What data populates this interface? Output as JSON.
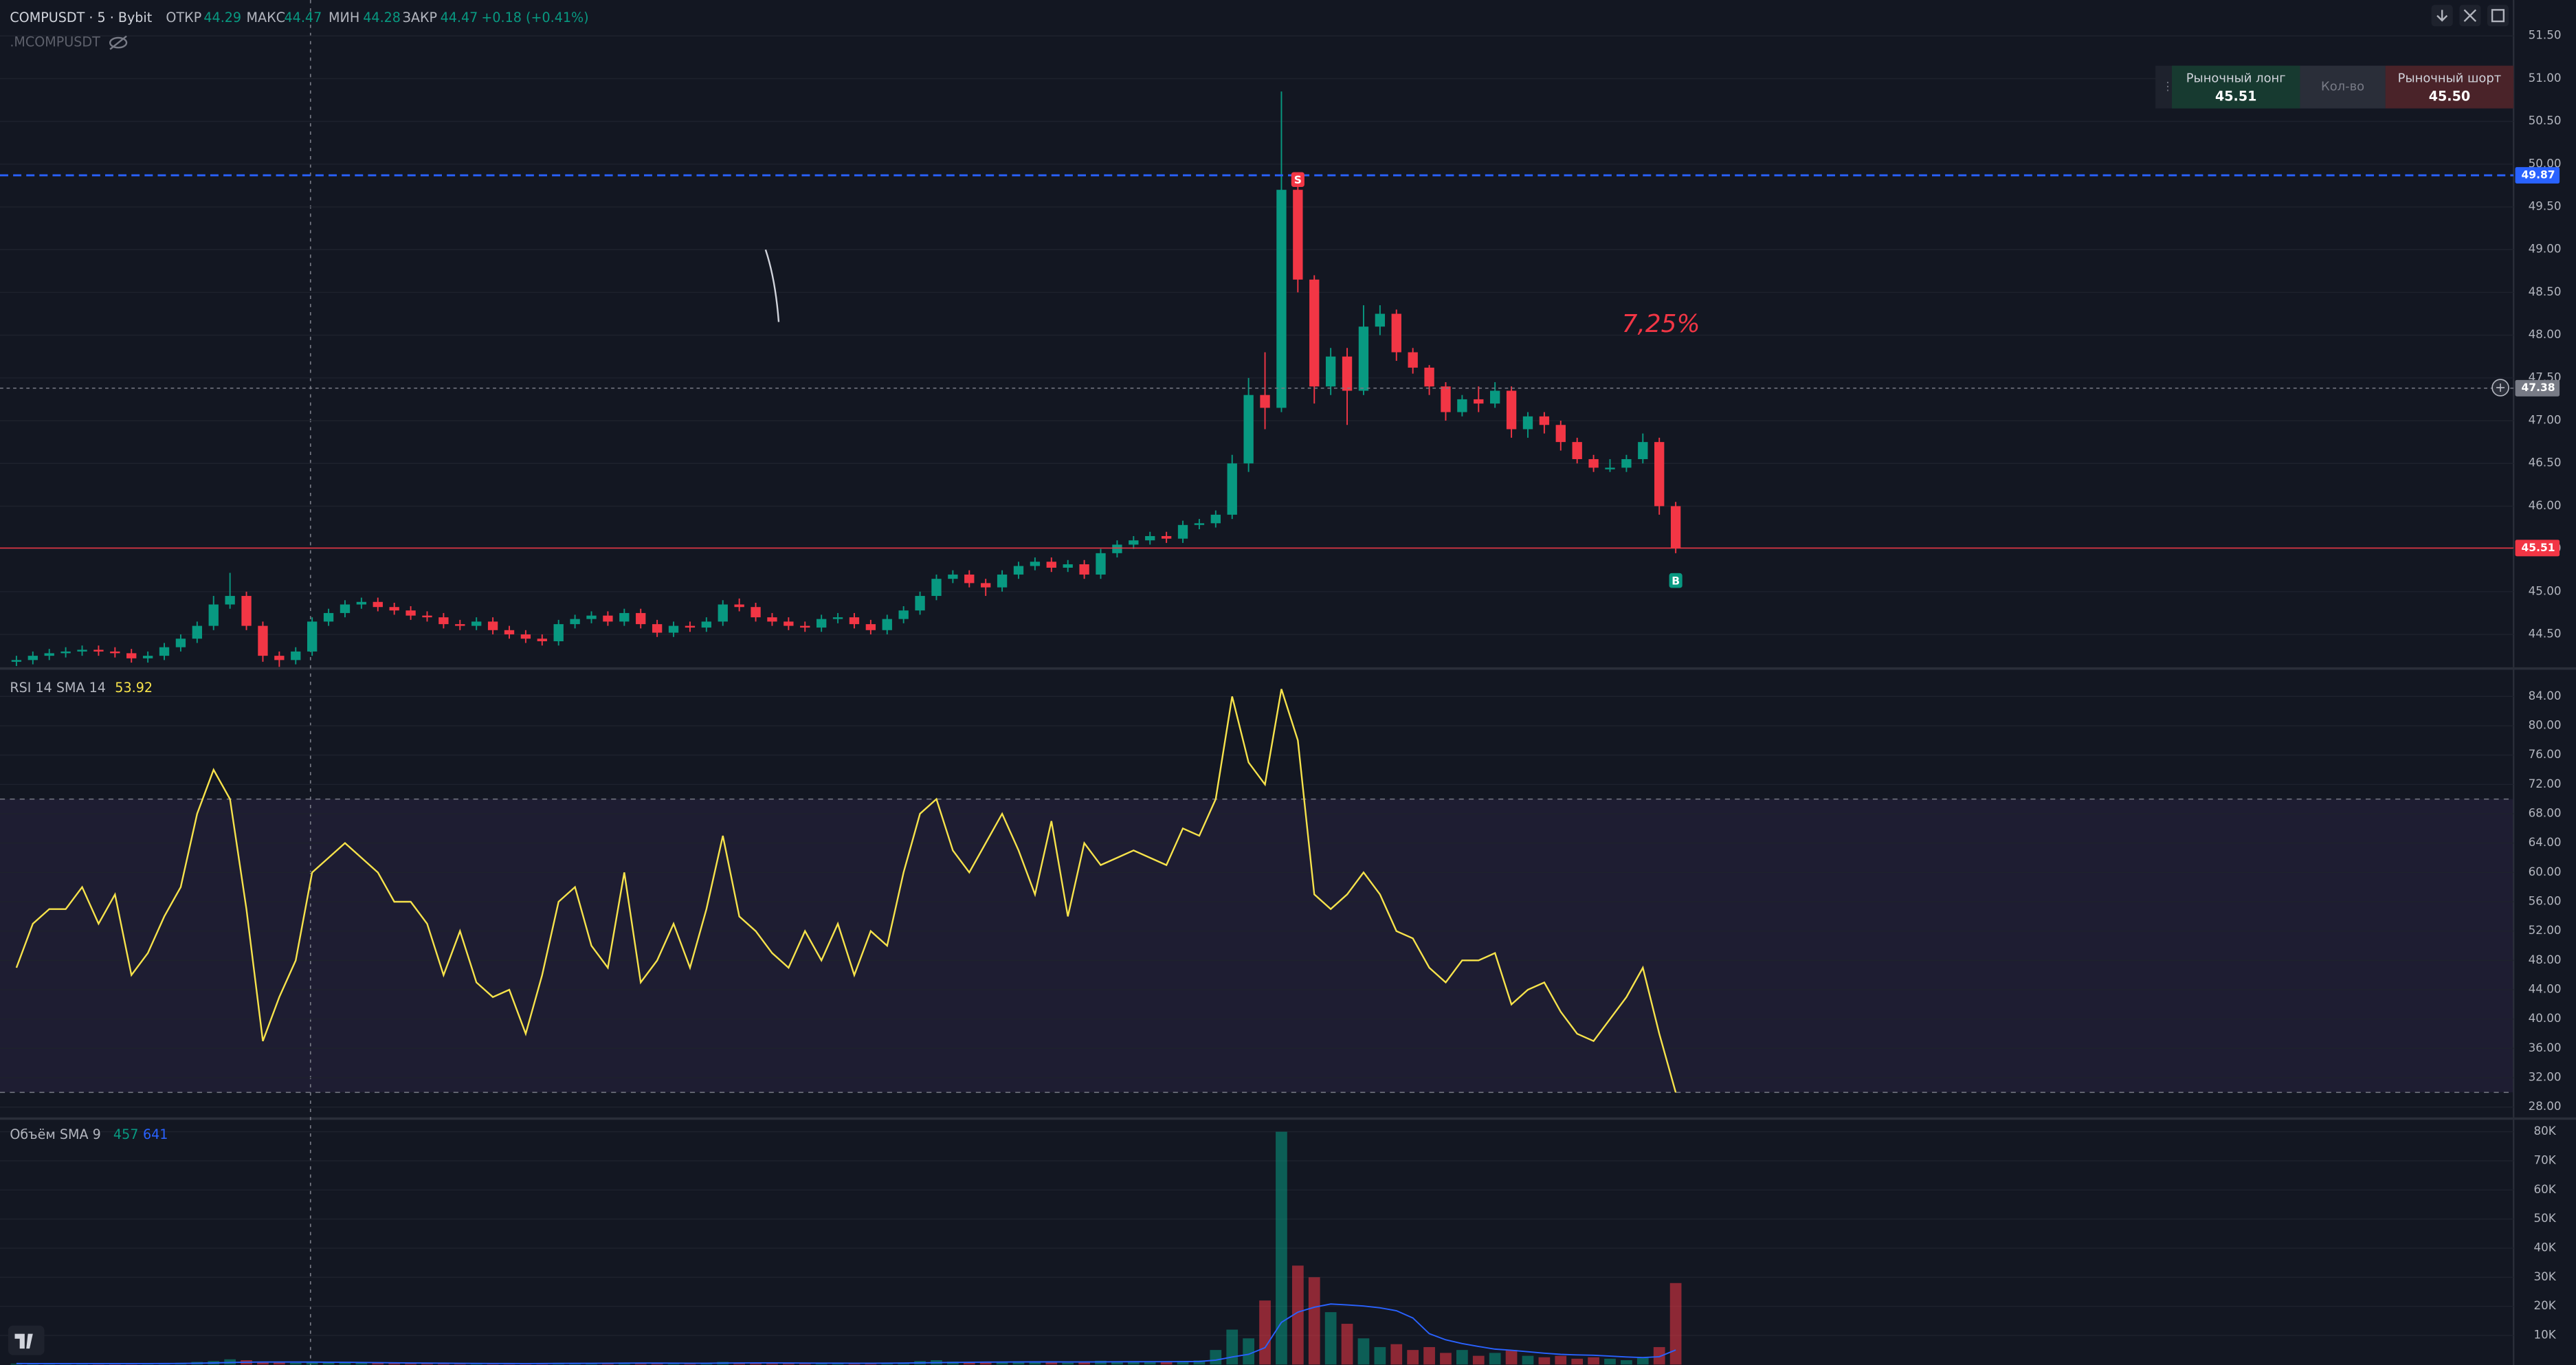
{
  "chart_data": [
    {
      "type": "candlestick",
      "title": "COMPUSDT · 5 · Bybit",
      "subtitle": ".MCOMPUSDT",
      "ohlc_labels": [
        "ОТКР",
        "МАКС",
        "МИН",
        "ЗАКР"
      ],
      "ohlc_values": [
        "44.29",
        "44.47",
        "44.28",
        "44.47"
      ],
      "change": "+0.18 (+0.41%)",
      "up_color": "#089981",
      "down_color": "#f23645",
      "open": [
        44.18,
        44.2,
        44.25,
        44.28,
        44.3,
        44.32,
        44.3,
        44.28,
        44.22,
        44.25,
        44.35,
        44.45,
        44.6,
        44.85,
        44.95,
        44.6,
        44.25,
        44.2,
        44.3,
        44.65,
        44.75,
        44.85,
        44.88,
        44.82,
        44.78,
        44.72,
        44.7,
        44.62,
        44.6,
        44.65,
        44.55,
        44.5,
        44.45,
        44.42,
        44.62,
        44.68,
        44.72,
        44.65,
        44.75,
        44.62,
        44.52,
        44.6,
        44.58,
        44.65,
        44.85,
        44.82,
        44.7,
        44.65,
        44.6,
        44.58,
        44.68,
        44.7,
        44.62,
        44.55,
        44.68,
        44.78,
        44.95,
        45.15,
        45.2,
        45.1,
        45.05,
        45.2,
        45.3,
        45.35,
        45.28,
        45.32,
        45.2,
        45.45,
        45.55,
        45.6,
        45.65,
        45.62,
        45.78,
        45.8,
        45.9,
        46.5,
        47.3,
        47.15,
        49.7,
        48.65,
        47.4,
        47.75,
        47.35,
        48.1,
        48.25,
        47.8,
        47.62,
        47.4,
        47.1,
        47.25,
        47.2,
        47.35,
        46.9,
        47.05,
        46.95,
        46.75,
        46.55,
        46.45,
        46.45,
        46.55,
        46.75,
        46.0
      ],
      "high": [
        44.25,
        44.3,
        44.33,
        44.35,
        44.37,
        44.37,
        44.35,
        44.33,
        44.3,
        44.4,
        44.5,
        44.65,
        44.95,
        45.22,
        45.0,
        44.65,
        44.3,
        44.35,
        44.7,
        44.8,
        44.9,
        44.93,
        44.93,
        44.87,
        44.83,
        44.77,
        44.75,
        44.67,
        44.7,
        44.7,
        44.6,
        44.55,
        44.5,
        44.67,
        44.73,
        44.77,
        44.77,
        44.8,
        44.8,
        44.67,
        44.65,
        44.65,
        44.7,
        44.9,
        44.92,
        44.87,
        44.75,
        44.7,
        44.65,
        44.73,
        44.75,
        44.75,
        44.67,
        44.73,
        44.83,
        45.0,
        45.2,
        45.25,
        45.25,
        45.15,
        45.25,
        45.35,
        45.4,
        45.4,
        45.37,
        45.37,
        45.5,
        45.6,
        45.65,
        45.7,
        45.7,
        45.83,
        45.85,
        45.95,
        46.6,
        47.5,
        47.8,
        50.85,
        49.9,
        48.7,
        47.85,
        47.85,
        48.35,
        48.35,
        48.3,
        47.85,
        47.65,
        47.45,
        47.3,
        47.4,
        47.45,
        47.4,
        47.1,
        47.1,
        47.0,
        46.8,
        46.6,
        46.55,
        46.6,
        46.85,
        46.8,
        46.05
      ],
      "low": [
        44.13,
        44.15,
        44.2,
        44.23,
        44.25,
        44.25,
        44.23,
        44.17,
        44.17,
        44.2,
        44.3,
        44.4,
        44.55,
        44.8,
        44.55,
        44.18,
        44.12,
        44.15,
        44.25,
        44.6,
        44.7,
        44.8,
        44.77,
        44.73,
        44.67,
        44.65,
        44.57,
        44.55,
        44.55,
        44.5,
        44.45,
        44.4,
        44.37,
        44.37,
        44.57,
        44.63,
        44.6,
        44.6,
        44.57,
        44.47,
        44.47,
        44.53,
        44.53,
        44.6,
        44.77,
        44.65,
        44.6,
        44.55,
        44.53,
        44.53,
        44.63,
        44.57,
        44.5,
        44.5,
        44.63,
        44.73,
        44.9,
        45.1,
        45.05,
        44.95,
        45.0,
        45.15,
        45.25,
        45.23,
        45.23,
        45.15,
        45.15,
        45.4,
        45.5,
        45.55,
        45.57,
        45.57,
        45.73,
        45.75,
        45.85,
        46.4,
        46.9,
        47.1,
        48.5,
        47.2,
        47.3,
        46.95,
        47.3,
        48.0,
        47.7,
        47.55,
        47.3,
        47.0,
        47.05,
        47.1,
        47.15,
        46.8,
        46.8,
        46.85,
        46.65,
        46.5,
        46.4,
        46.4,
        46.4,
        46.5,
        45.9,
        45.45
      ],
      "close": [
        44.2,
        44.25,
        44.28,
        44.3,
        44.32,
        44.3,
        44.28,
        44.22,
        44.25,
        44.35,
        44.45,
        44.6,
        44.85,
        44.95,
        44.6,
        44.25,
        44.2,
        44.3,
        44.65,
        44.75,
        44.85,
        44.88,
        44.82,
        44.78,
        44.72,
        44.7,
        44.62,
        44.6,
        44.65,
        44.55,
        44.5,
        44.45,
        44.42,
        44.62,
        44.68,
        44.72,
        44.65,
        44.75,
        44.62,
        44.52,
        44.6,
        44.58,
        44.65,
        44.85,
        44.82,
        44.7,
        44.65,
        44.6,
        44.58,
        44.68,
        44.7,
        44.62,
        44.55,
        44.68,
        44.78,
        44.95,
        45.15,
        45.2,
        45.1,
        45.05,
        45.2,
        45.3,
        45.35,
        45.28,
        45.32,
        45.2,
        45.45,
        45.55,
        45.6,
        45.65,
        45.62,
        45.78,
        45.8,
        45.9,
        46.5,
        47.3,
        47.15,
        49.7,
        48.65,
        47.4,
        47.75,
        47.35,
        48.1,
        48.25,
        47.8,
        47.62,
        47.4,
        47.1,
        47.25,
        47.2,
        47.35,
        46.9,
        47.05,
        46.95,
        46.75,
        46.55,
        46.45,
        46.45,
        46.55,
        46.75,
        46.0,
        45.51
      ],
      "ylim": [
        44.12,
        51.92
      ],
      "yticks": [
        {
          "value": 44.5,
          "label": "44.50"
        },
        {
          "value": 45,
          "label": "45.00"
        },
        {
          "value": 45.5,
          "label": "45.50"
        },
        {
          "value": 46,
          "label": "46.00"
        },
        {
          "value": 46.5,
          "label": "46.50"
        },
        {
          "value": 47,
          "label": "47.00"
        },
        {
          "value": 47.5,
          "label": "47.50"
        },
        {
          "value": 48,
          "label": "48.00"
        },
        {
          "value": 48.5,
          "label": "48.50"
        },
        {
          "value": 49,
          "label": "49.00"
        },
        {
          "value": 49.5,
          "label": "49.50"
        },
        {
          "value": 50,
          "label": "50.00"
        },
        {
          "value": 50.5,
          "label": "50.50"
        },
        {
          "value": 51,
          "label": "51.00"
        },
        {
          "value": 51.5,
          "label": "51.50"
        }
      ],
      "grid": true,
      "price_lines": [
        {
          "value": 49.87,
          "color": "#2962ff",
          "style": "dashed"
        },
        {
          "value": 47.38,
          "color": "#787b86",
          "style": "dotted"
        },
        {
          "value": 45.51,
          "color": "#f23645",
          "style": "solid"
        }
      ],
      "markers": [
        {
          "text": "S",
          "index": 78,
          "price": 49.82,
          "color": "#f23645"
        },
        {
          "text": "B",
          "index": 101,
          "price": 45.13,
          "color": "#089981"
        }
      ],
      "annotation": "7,25%"
    },
    {
      "type": "line",
      "title": "RSI 14 SMA 14",
      "current": "53.92",
      "color": "#f7e34b",
      "band": [
        30,
        70
      ],
      "values": [
        47,
        53,
        55,
        55,
        58,
        53,
        57,
        46,
        49,
        54,
        58,
        68,
        74,
        70,
        55,
        37,
        43,
        48,
        60,
        62,
        64,
        62,
        60,
        56,
        56,
        53,
        46,
        52,
        45,
        43,
        44,
        38,
        46,
        56,
        58,
        50,
        47,
        60,
        45,
        48,
        53,
        47,
        55,
        65,
        54,
        52,
        49,
        47,
        52,
        48,
        53,
        46,
        52,
        50,
        60,
        68,
        70,
        63,
        60,
        64,
        68,
        63,
        57,
        67,
        54,
        64,
        61,
        62,
        63,
        62,
        61,
        66,
        65,
        70,
        84,
        75,
        72,
        85,
        78,
        57,
        55,
        57,
        60,
        57,
        52,
        51,
        47,
        45,
        48,
        48,
        49,
        42,
        44,
        45,
        41,
        38,
        37,
        40,
        43,
        47,
        38,
        30
      ],
      "ylim": [
        26.65,
        87.58
      ],
      "yticks": [
        {
          "value": 28,
          "label": "28.00"
        },
        {
          "value": 32,
          "label": "32.00"
        },
        {
          "value": 36,
          "label": "36.00"
        },
        {
          "value": 40,
          "label": "40.00"
        },
        {
          "value": 44,
          "label": "44.00"
        },
        {
          "value": 48,
          "label": "48.00"
        },
        {
          "value": 52,
          "label": "52.00"
        },
        {
          "value": 56,
          "label": "56.00"
        },
        {
          "value": 60,
          "label": "60.00"
        },
        {
          "value": 64,
          "label": "64.00"
        },
        {
          "value": 68,
          "label": "68.00"
        },
        {
          "value": 72,
          "label": "72.00"
        },
        {
          "value": 76,
          "label": "76.00"
        },
        {
          "value": 80,
          "label": "80.00"
        },
        {
          "value": 84,
          "label": "84.00"
        }
      ],
      "grid": true
    },
    {
      "type": "bar",
      "title": "Объём SMA 9",
      "legend_values": [
        {
          "text": "457",
          "color": "#089981"
        },
        {
          "text": "641",
          "color": "#2962ff"
        }
      ],
      "values": [
        300,
        250,
        400,
        350,
        300,
        280,
        260,
        300,
        350,
        500,
        600,
        900,
        1200,
        1800,
        1500,
        900,
        700,
        600,
        800,
        1000,
        700,
        600,
        500,
        450,
        400,
        500,
        350,
        400,
        300,
        350,
        300,
        280,
        320,
        600,
        500,
        450,
        400,
        700,
        500,
        400,
        350,
        300,
        400,
        900,
        700,
        500,
        400,
        350,
        300,
        500,
        450,
        400,
        350,
        600,
        700,
        1200,
        1500,
        1000,
        800,
        700,
        900,
        1100,
        800,
        700,
        600,
        800,
        1300,
        1100,
        900,
        1000,
        800,
        1200,
        1400,
        5000,
        12000,
        9000,
        22000,
        80000,
        34000,
        30000,
        18000,
        14000,
        9000,
        6000,
        7000,
        5000,
        6000,
        4000,
        5000,
        3000,
        4000,
        5000,
        3000,
        2500,
        3000,
        2000,
        2500,
        2000,
        1500,
        2500,
        6000,
        28000
      ],
      "sma": {
        "color": "#2962ff",
        "values": [
          350,
          330,
          330,
          320,
          320,
          310,
          310,
          310,
          320,
          340,
          380,
          450,
          550,
          700,
          800,
          850,
          860,
          850,
          840,
          800,
          780,
          720,
          660,
          600,
          540,
          500,
          460,
          420,
          380,
          360,
          340,
          330,
          340,
          380,
          400,
          420,
          440,
          480,
          500,
          490,
          470,
          440,
          450,
          500,
          540,
          560,
          560,
          540,
          500,
          480,
          470,
          450,
          450,
          470,
          500,
          580,
          660,
          720,
          780,
          820,
          860,
          880,
          900,
          900,
          880,
          880,
          900,
          940,
          960,
          980,
          980,
          1000,
          1050,
          1500,
          2600,
          3500,
          5800,
          14500,
          18000,
          19700,
          20800,
          20500,
          20100,
          19500,
          18500,
          16000,
          10600,
          8500,
          7200,
          6200,
          5300,
          4900,
          4400,
          3900,
          3500,
          3300,
          3200,
          2900,
          2600,
          2400,
          2700,
          5000
        ]
      },
      "ylim": [
        -160,
        83950
      ],
      "yticks": [
        {
          "value": 10000,
          "label": "10K"
        },
        {
          "value": 20000,
          "label": "20K"
        },
        {
          "value": 30000,
          "label": "30K"
        },
        {
          "value": 40000,
          "label": "40K"
        },
        {
          "value": 50000,
          "label": "50K"
        },
        {
          "value": 60000,
          "label": "60K"
        },
        {
          "value": 70000,
          "label": "70K"
        },
        {
          "value": 80000,
          "label": "80K"
        }
      ],
      "grid": true
    }
  ],
  "trade_panel": {
    "long_label": "Рыночный лонг",
    "long_price": "45.51",
    "qty_label": "Кол-во",
    "short_label": "Рыночный шорт",
    "short_price": "45.50"
  }
}
